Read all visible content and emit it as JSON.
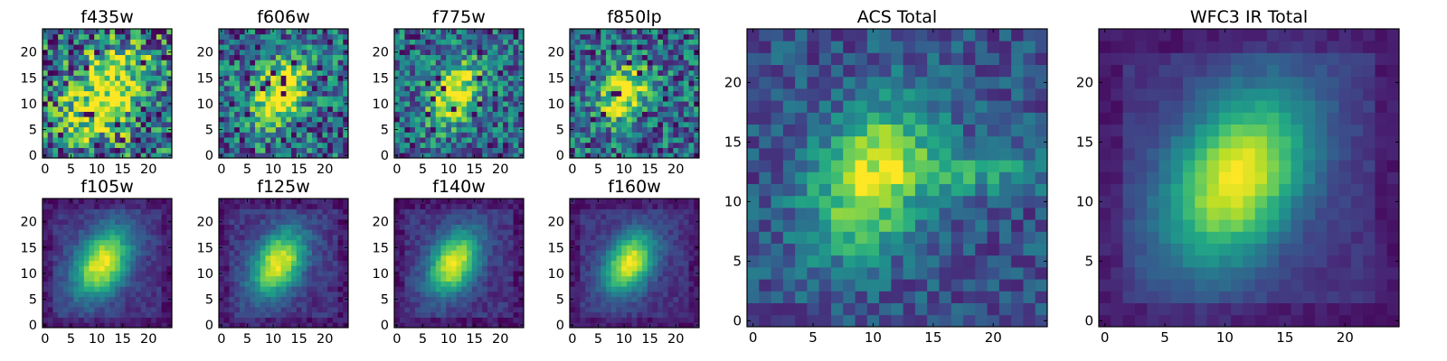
{
  "figure": {
    "colormap": "viridis",
    "colors": {
      "low": "#440154",
      "mid": "#21918c",
      "high": "#fde725"
    }
  },
  "chart_data": [
    {
      "type": "heatmap",
      "title": "f435w",
      "pattern": "noisy",
      "seed": 11,
      "noise": 0.55,
      "center": [
        12,
        12
      ],
      "sigma": 6.0,
      "xlim": [
        0,
        24
      ],
      "ylim": [
        0,
        24
      ],
      "xticks": [
        "0",
        "5",
        "10",
        "15",
        "20"
      ],
      "yticks": [
        "0",
        "5",
        "10",
        "15",
        "20"
      ]
    },
    {
      "type": "heatmap",
      "title": "f606w",
      "pattern": "noisy",
      "seed": 23,
      "noise": 0.42,
      "center": [
        11,
        12
      ],
      "sigma": 4.5,
      "xlim": [
        0,
        24
      ],
      "ylim": [
        0,
        24
      ],
      "xticks": [
        "0",
        "5",
        "10",
        "15",
        "20"
      ],
      "yticks": [
        "0",
        "5",
        "10",
        "15",
        "20"
      ]
    },
    {
      "type": "heatmap",
      "title": "f775w",
      "pattern": "noisy",
      "seed": 37,
      "noise": 0.38,
      "center": [
        11,
        12
      ],
      "sigma": 4.0,
      "xlim": [
        0,
        24
      ],
      "ylim": [
        0,
        24
      ],
      "xticks": [
        "0",
        "5",
        "10",
        "15",
        "20"
      ],
      "yticks": [
        "0",
        "5",
        "10",
        "15",
        "20"
      ]
    },
    {
      "type": "heatmap",
      "title": "f850lp",
      "pattern": "noisy",
      "seed": 41,
      "noise": 0.4,
      "center": [
        10,
        12
      ],
      "sigma": 3.6,
      "xlim": [
        0,
        24
      ],
      "ylim": [
        0,
        24
      ],
      "xticks": [
        "0",
        "5",
        "10",
        "15",
        "20"
      ],
      "yticks": [
        "0",
        "5",
        "10",
        "15",
        "20"
      ]
    },
    {
      "type": "heatmap",
      "title": "f105w",
      "pattern": "smooth",
      "seed": 53,
      "noise": 0.14,
      "center": [
        11,
        12
      ],
      "sigma": 4.4,
      "xlim": [
        0,
        24
      ],
      "ylim": [
        0,
        24
      ],
      "xticks": [
        "0",
        "5",
        "10",
        "15",
        "20"
      ],
      "yticks": [
        "0",
        "5",
        "10",
        "15",
        "20"
      ]
    },
    {
      "type": "heatmap",
      "title": "f125w",
      "pattern": "smooth",
      "seed": 61,
      "noise": 0.16,
      "center": [
        11,
        12
      ],
      "sigma": 4.2,
      "xlim": [
        0,
        24
      ],
      "ylim": [
        0,
        24
      ],
      "xticks": [
        "0",
        "5",
        "10",
        "15",
        "20"
      ],
      "yticks": [
        "0",
        "5",
        "10",
        "15",
        "20"
      ]
    },
    {
      "type": "heatmap",
      "title": "f140w",
      "pattern": "smooth",
      "seed": 71,
      "noise": 0.15,
      "center": [
        11,
        12
      ],
      "sigma": 4.0,
      "xlim": [
        0,
        24
      ],
      "ylim": [
        0,
        24
      ],
      "xticks": [
        "0",
        "5",
        "10",
        "15",
        "20"
      ],
      "yticks": [
        "0",
        "5",
        "10",
        "15",
        "20"
      ]
    },
    {
      "type": "heatmap",
      "title": "f160w",
      "pattern": "smooth",
      "seed": 83,
      "noise": 0.13,
      "center": [
        11,
        12
      ],
      "sigma": 3.9,
      "xlim": [
        0,
        24
      ],
      "ylim": [
        0,
        24
      ],
      "xticks": [
        "0",
        "5",
        "10",
        "15",
        "20"
      ],
      "yticks": [
        "0",
        "5",
        "10",
        "15",
        "20"
      ]
    },
    {
      "type": "heatmap",
      "title": "ACS Total",
      "pattern": "blocky",
      "seed": 97,
      "noise": 0.2,
      "center": [
        10,
        12
      ],
      "sigma": 4.2,
      "xlim": [
        0,
        24
      ],
      "ylim": [
        0,
        24
      ],
      "xticks": [
        "0",
        "5",
        "10",
        "15",
        "20"
      ],
      "yticks": [
        "0",
        "5",
        "10",
        "15",
        "20"
      ]
    },
    {
      "type": "heatmap",
      "title": "WFC3 IR Total",
      "pattern": "smooth",
      "seed": 109,
      "noise": 0.08,
      "center": [
        11,
        12
      ],
      "sigma": 4.8,
      "xlim": [
        0,
        24
      ],
      "ylim": [
        0,
        24
      ],
      "xticks": [
        "0",
        "5",
        "10",
        "15",
        "20"
      ],
      "yticks": [
        "0",
        "5",
        "10",
        "15",
        "20"
      ]
    }
  ]
}
